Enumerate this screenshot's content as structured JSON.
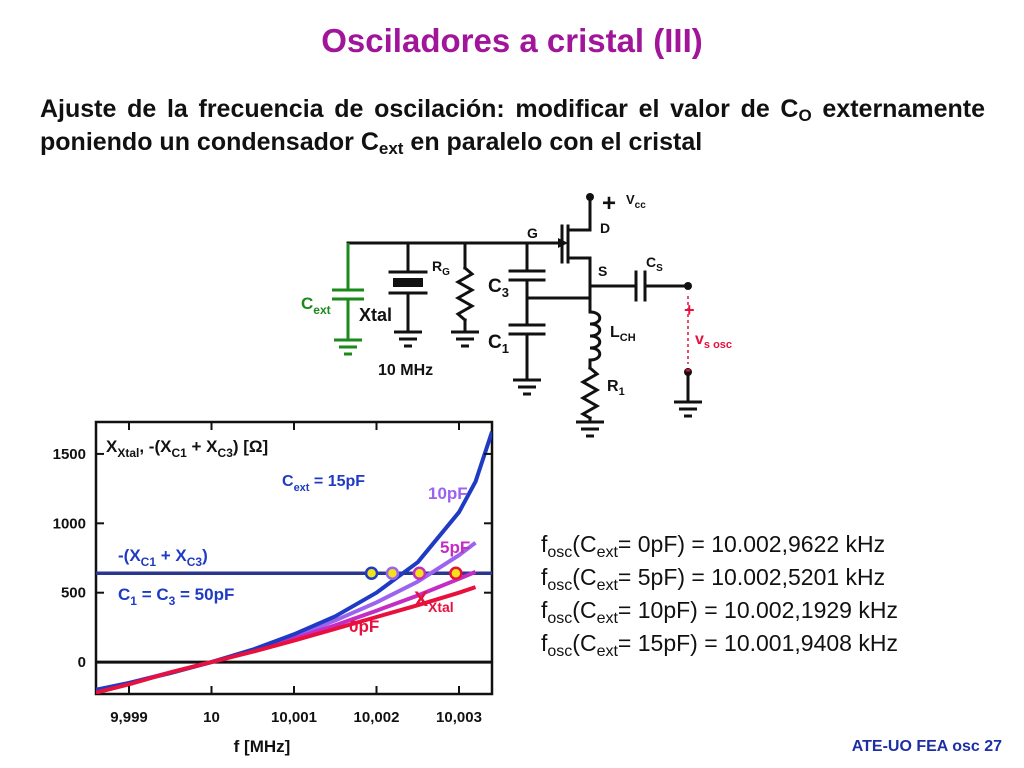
{
  "title": "Osciladores a cristal (III)",
  "subtitle": {
    "line1_a": "Ajuste de la frecuencia de oscilación: modificar el valor de C",
    "line1_sub": "O",
    "line2_a": "externamente poniendo un condensador C",
    "line2_sub": "ext",
    "line2_b": " en paralelo con el cristal"
  },
  "circuit": {
    "vcc": "V",
    "vcc_sub": "cc",
    "plus": "+",
    "drain": "D",
    "gate": "G",
    "source": "S",
    "rg": "R",
    "rg_sub": "G",
    "c3": "C",
    "c3_sub": "3",
    "c1": "C",
    "c1_sub": "1",
    "cs": "C",
    "cs_sub": "S",
    "lch": "L",
    "lch_sub": "CH",
    "r1": "R",
    "r1_sub": "1",
    "cext": "C",
    "cext_sub": "ext",
    "xtal": "Xtal",
    "freq": "10 MHz",
    "vsosc": "v",
    "vsosc_sub": "s osc",
    "vs_plus": "+",
    "vs_minus": "-"
  },
  "chart_data": {
    "type": "line",
    "title_main": "X",
    "title_sub1": "Xtal",
    "title_mid": ", -(X",
    "title_sub2": "C1",
    "title_mid2": " + X",
    "title_sub3": "C3",
    "title_end": ")  [Ω]",
    "xlabel": "f [MHz]",
    "x_ticks": [
      "9,999",
      "10",
      "10,001",
      "10,002",
      "10,003"
    ],
    "y_ticks": [
      "0",
      "500",
      "1000",
      "1500"
    ],
    "xlim": [
      9.9986,
      10.0034
    ],
    "ylim": [
      -230,
      1730
    ],
    "series": [
      {
        "label_main": "C",
        "label_sub": "ext",
        "label_rest": " = 15pF",
        "color": "#1f3bc4",
        "x": [
          9.9986,
          9.999,
          9.9995,
          10.0,
          10.0005,
          10.001,
          10.0015,
          10.002,
          10.0025,
          10.003,
          10.0032,
          10.0034
        ],
        "y": [
          -200,
          -150,
          -80,
          0,
          90,
          200,
          330,
          500,
          720,
          1080,
          1300,
          1660
        ]
      },
      {
        "label_main": "",
        "label_sub": "",
        "label_rest": "10pF",
        "color": "#9c62f0",
        "x": [
          9.9986,
          9.999,
          9.9995,
          10.0,
          10.0005,
          10.001,
          10.0015,
          10.002,
          10.0025,
          10.003,
          10.0032
        ],
        "y": [
          -200,
          -150,
          -75,
          0,
          85,
          185,
          300,
          430,
          580,
          770,
          860
        ]
      },
      {
        "label_main": "",
        "label_sub": "",
        "label_rest": "5pF",
        "color": "#c42dc4",
        "x": [
          9.9986,
          9.999,
          9.9995,
          10.0,
          10.0005,
          10.001,
          10.0015,
          10.002,
          10.0025,
          10.003,
          10.0032
        ],
        "y": [
          -210,
          -155,
          -75,
          0,
          80,
          170,
          265,
          370,
          480,
          600,
          650
        ]
      },
      {
        "label_main": "",
        "label_sub": "",
        "label_rest": "0pF",
        "color": "#e8103c",
        "x": [
          9.9986,
          9.999,
          9.9995,
          10.0,
          10.0005,
          10.001,
          10.0015,
          10.002,
          10.0025,
          10.003,
          10.0032
        ],
        "y": [
          -220,
          -160,
          -75,
          0,
          75,
          155,
          240,
          325,
          410,
          500,
          540
        ]
      }
    ],
    "hline": {
      "y": 640,
      "color": "#2b3690",
      "label_a": "-(X",
      "label_a_sub1": "C1",
      "label_a_mid": " + X",
      "label_a_sub2": "C3",
      "label_a_end": ")",
      "label_b": "C",
      "label_b_sub1": "1",
      "label_b_mid": " = C",
      "label_b_sub2": "3",
      "label_b_end": " = 50pF"
    },
    "xtal_label_main": "X",
    "xtal_label_sub": "Xtal",
    "zero_line": true,
    "markers": [
      {
        "x": 10.00194,
        "color": "#1f3bc4"
      },
      {
        "x": 10.002193,
        "color": "#9c62f0"
      },
      {
        "x": 10.00252,
        "color": "#c42dc4"
      },
      {
        "x": 10.002962,
        "color": "#e8103c"
      }
    ]
  },
  "results": [
    {
      "a": "f",
      "a_sub": "osc",
      "b": "(C",
      "b_sub": "ext",
      "c": "= 0pF)  = 10.002,9622 kHz"
    },
    {
      "a": "f",
      "a_sub": "osc",
      "b": "(C",
      "b_sub": "ext",
      "c": "= 5pF)  = 10.002,5201 kHz"
    },
    {
      "a": "f",
      "a_sub": "osc",
      "b": "(C",
      "b_sub": "ext",
      "c": "= 10pF) = 10.002,1929 kHz"
    },
    {
      "a": "f",
      "a_sub": "osc",
      "b": "(C",
      "b_sub": "ext",
      "c": "= 15pF) = 10.001,9408 kHz"
    }
  ],
  "footer": "ATE-UO FEA osc 27",
  "colors": {
    "title": "#a0159a",
    "cext": "#1a8a1a",
    "vsosc": "#e8103c",
    "footer": "#1e2fa6"
  }
}
